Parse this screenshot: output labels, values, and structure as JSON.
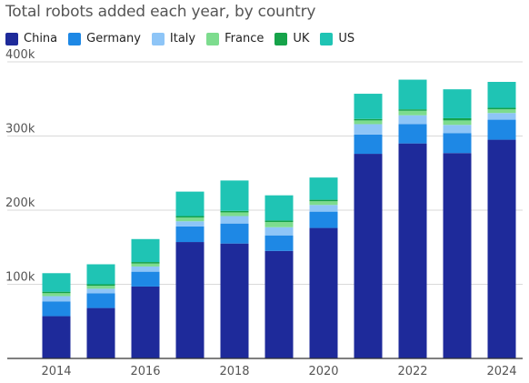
{
  "chart_data": {
    "type": "bar",
    "stacked": true,
    "title": "Total robots added each year, by country",
    "categories": [
      "2014",
      "2015",
      "2016",
      "2017",
      "2018",
      "2019",
      "2020",
      "2021",
      "2022",
      "2023",
      "2024"
    ],
    "x_tick_labels": [
      "2014",
      "2016",
      "2018",
      "2020",
      "2022",
      "2024"
    ],
    "y_tick_labels": [
      "100k",
      "200k",
      "300k",
      "400k"
    ],
    "ylim": [
      0,
      400000
    ],
    "grid": true,
    "legend_position": "top-left",
    "series": [
      {
        "name": "China",
        "color": "#1e2a9a",
        "values": [
          57000,
          68000,
          97000,
          157000,
          155000,
          145000,
          176000,
          276000,
          290000,
          277000,
          295000
        ]
      },
      {
        "name": "Germany",
        "color": "#1e88e5",
        "values": [
          20000,
          20000,
          20000,
          21000,
          27000,
          21000,
          22000,
          26000,
          26000,
          27000,
          27000
        ]
      },
      {
        "name": "Italy",
        "color": "#8ec5f7",
        "values": [
          7000,
          6000,
          7000,
          7000,
          10000,
          11000,
          9000,
          14000,
          12000,
          11000,
          9000
        ]
      },
      {
        "name": "France",
        "color": "#7ddc8e",
        "values": [
          4000,
          4000,
          4000,
          5000,
          5000,
          7000,
          5000,
          5000,
          6000,
          6000,
          5000
        ]
      },
      {
        "name": "UK",
        "color": "#16a34a",
        "values": [
          2000,
          2000,
          2000,
          2000,
          2000,
          2000,
          2000,
          2000,
          2000,
          3000,
          2000
        ]
      },
      {
        "name": "US",
        "color": "#1fc4b4",
        "values": [
          25000,
          27000,
          31000,
          33000,
          41000,
          34000,
          30000,
          34000,
          40000,
          39000,
          35000
        ]
      }
    ]
  }
}
